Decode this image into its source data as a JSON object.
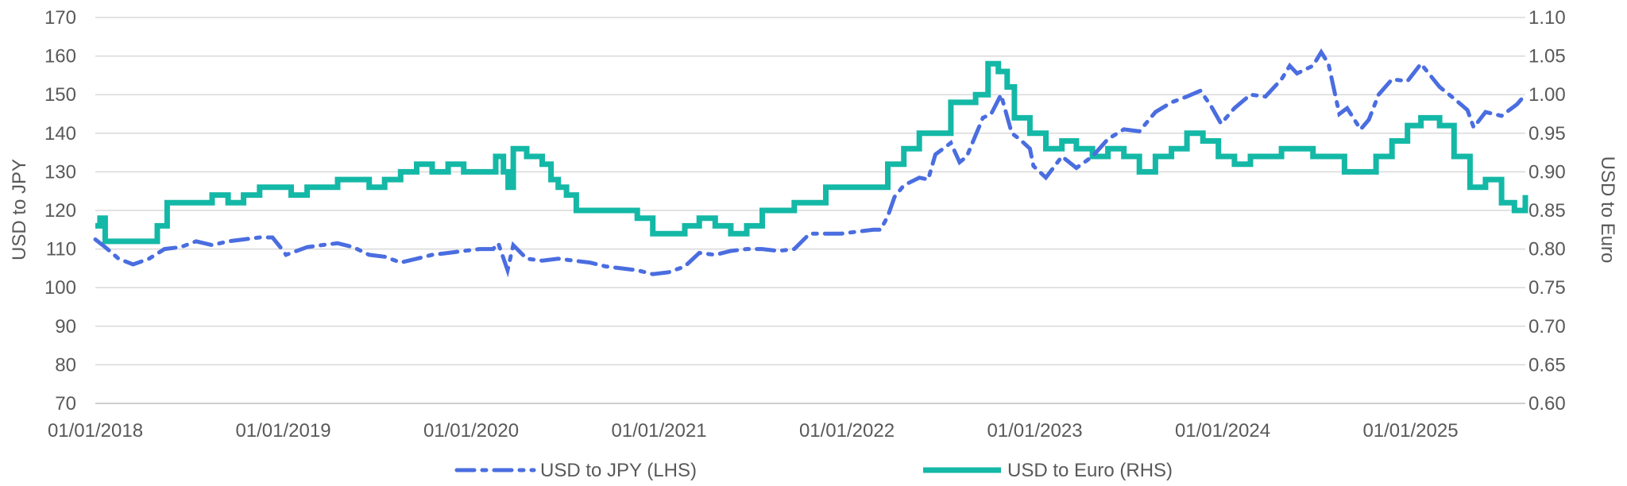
{
  "chart_data": {
    "type": "line",
    "x_tick_labels": [
      "01/01/2018",
      "01/01/2019",
      "01/01/2020",
      "01/01/2021",
      "01/01/2022",
      "01/01/2023",
      "01/01/2024",
      "01/01/2025"
    ],
    "x_start": "2018-01-01",
    "x_end": "2025-07-31",
    "left_axis": {
      "label": "USD to JPY",
      "ylim": [
        70,
        170
      ],
      "ticks": [
        "70",
        "80",
        "90",
        "100",
        "110",
        "120",
        "130",
        "140",
        "150",
        "160",
        "170"
      ]
    },
    "right_axis": {
      "label": "USD to Euro",
      "ylim": [
        0.6,
        1.1
      ],
      "ticks": [
        "0.60",
        "0.65",
        "0.70",
        "0.75",
        "0.80",
        "0.85",
        "0.90",
        "0.95",
        "1.00",
        "1.05",
        "1.10"
      ]
    },
    "grid": true,
    "legend_position": "bottom",
    "series": [
      {
        "name": "USD to JPY (LHS)",
        "axis": "left",
        "color": "#4a6de0",
        "style": "dash-dot",
        "points": [
          [
            "2018-01-01",
            112.5
          ],
          [
            "2018-01-20",
            110.5
          ],
          [
            "2018-02-15",
            107.5
          ],
          [
            "2018-03-15",
            106.0
          ],
          [
            "2018-04-15",
            107.5
          ],
          [
            "2018-05-15",
            110.0
          ],
          [
            "2018-06-15",
            110.5
          ],
          [
            "2018-07-15",
            112.0
          ],
          [
            "2018-08-15",
            111.0
          ],
          [
            "2018-09-15",
            112.0
          ],
          [
            "2018-10-15",
            112.5
          ],
          [
            "2018-11-15",
            113.0
          ],
          [
            "2018-12-10",
            113.0
          ],
          [
            "2018-12-25",
            110.5
          ],
          [
            "2019-01-05",
            108.5
          ],
          [
            "2019-02-15",
            110.5
          ],
          [
            "2019-03-15",
            111.0
          ],
          [
            "2019-04-15",
            111.5
          ],
          [
            "2019-05-15",
            110.5
          ],
          [
            "2019-06-15",
            108.5
          ],
          [
            "2019-07-15",
            108.0
          ],
          [
            "2019-08-15",
            106.5
          ],
          [
            "2019-09-15",
            107.5
          ],
          [
            "2019-10-15",
            108.5
          ],
          [
            "2019-11-15",
            109.0
          ],
          [
            "2019-12-15",
            109.5
          ],
          [
            "2020-01-15",
            110.0
          ],
          [
            "2020-02-10",
            110.0
          ],
          [
            "2020-02-20",
            111.5
          ],
          [
            "2020-03-09",
            104.5
          ],
          [
            "2020-03-20",
            111.0
          ],
          [
            "2020-04-15",
            107.5
          ],
          [
            "2020-05-15",
            107.0
          ],
          [
            "2020-06-15",
            107.5
          ],
          [
            "2020-07-15",
            107.0
          ],
          [
            "2020-08-15",
            106.5
          ],
          [
            "2020-09-15",
            105.5
          ],
          [
            "2020-10-15",
            105.0
          ],
          [
            "2020-11-15",
            104.5
          ],
          [
            "2020-12-15",
            103.5
          ],
          [
            "2021-01-15",
            104.0
          ],
          [
            "2021-02-15",
            105.5
          ],
          [
            "2021-03-15",
            109.0
          ],
          [
            "2021-04-15",
            108.5
          ],
          [
            "2021-05-15",
            109.5
          ],
          [
            "2021-06-15",
            110.0
          ],
          [
            "2021-07-15",
            110.0
          ],
          [
            "2021-08-15",
            109.5
          ],
          [
            "2021-09-15",
            110.0
          ],
          [
            "2021-10-15",
            114.0
          ],
          [
            "2021-11-15",
            114.0
          ],
          [
            "2021-12-15",
            114.0
          ],
          [
            "2022-01-15",
            114.5
          ],
          [
            "2022-02-15",
            115.0
          ],
          [
            "2022-03-01",
            115.0
          ],
          [
            "2022-03-15",
            118.5
          ],
          [
            "2022-03-28",
            123.5
          ],
          [
            "2022-04-15",
            126.5
          ],
          [
            "2022-05-15",
            128.5
          ],
          [
            "2022-06-01",
            128.0
          ],
          [
            "2022-06-15",
            134.5
          ],
          [
            "2022-07-15",
            137.5
          ],
          [
            "2022-08-01",
            132.5
          ],
          [
            "2022-08-15",
            134.0
          ],
          [
            "2022-09-01",
            139.5
          ],
          [
            "2022-09-15",
            144.0
          ],
          [
            "2022-10-01",
            145.0
          ],
          [
            "2022-10-20",
            150.0
          ],
          [
            "2022-11-10",
            140.0
          ],
          [
            "2022-11-25",
            138.5
          ],
          [
            "2022-12-15",
            136.0
          ],
          [
            "2022-12-22",
            131.5
          ],
          [
            "2023-01-15",
            128.5
          ],
          [
            "2023-02-15",
            134.0
          ],
          [
            "2023-03-15",
            131.0
          ],
          [
            "2023-04-15",
            134.0
          ],
          [
            "2023-05-15",
            138.5
          ],
          [
            "2023-06-15",
            141.0
          ],
          [
            "2023-07-15",
            140.5
          ],
          [
            "2023-08-15",
            145.5
          ],
          [
            "2023-09-15",
            148.0
          ],
          [
            "2023-10-15",
            149.5
          ],
          [
            "2023-11-10",
            151.0
          ],
          [
            "2023-12-01",
            147.0
          ],
          [
            "2023-12-20",
            142.5
          ],
          [
            "2024-01-15",
            146.5
          ],
          [
            "2024-02-15",
            150.0
          ],
          [
            "2024-03-15",
            149.5
          ],
          [
            "2024-04-15",
            154.0
          ],
          [
            "2024-05-01",
            157.5
          ],
          [
            "2024-05-15",
            155.5
          ],
          [
            "2024-06-15",
            157.5
          ],
          [
            "2024-07-01",
            161.0
          ],
          [
            "2024-07-15",
            158.0
          ],
          [
            "2024-08-05",
            145.0
          ],
          [
            "2024-08-20",
            146.5
          ],
          [
            "2024-09-15",
            141.0
          ],
          [
            "2024-10-01",
            143.5
          ],
          [
            "2024-10-20",
            150.0
          ],
          [
            "2024-11-15",
            154.0
          ],
          [
            "2024-12-15",
            153.5
          ],
          [
            "2025-01-10",
            158.0
          ],
          [
            "2025-02-15",
            152.0
          ],
          [
            "2025-03-15",
            149.0
          ],
          [
            "2025-04-10",
            146.0
          ],
          [
            "2025-04-22",
            141.5
          ],
          [
            "2025-05-15",
            145.5
          ],
          [
            "2025-06-15",
            144.5
          ],
          [
            "2025-07-15",
            147.5
          ],
          [
            "2025-07-31",
            150.0
          ]
        ]
      },
      {
        "name": "USD to Euro (RHS)",
        "axis": "right",
        "color": "#14b8a6",
        "style": "solid",
        "points": [
          [
            "2018-01-01",
            0.83
          ],
          [
            "2018-01-10",
            0.84
          ],
          [
            "2018-01-20",
            0.81
          ],
          [
            "2018-02-10",
            0.81
          ],
          [
            "2018-03-15",
            0.81
          ],
          [
            "2018-04-15",
            0.81
          ],
          [
            "2018-05-01",
            0.83
          ],
          [
            "2018-05-20",
            0.86
          ],
          [
            "2018-06-15",
            0.86
          ],
          [
            "2018-07-15",
            0.86
          ],
          [
            "2018-08-15",
            0.87
          ],
          [
            "2018-09-15",
            0.86
          ],
          [
            "2018-10-15",
            0.87
          ],
          [
            "2018-11-15",
            0.88
          ],
          [
            "2018-12-15",
            0.88
          ],
          [
            "2019-01-15",
            0.87
          ],
          [
            "2019-02-15",
            0.88
          ],
          [
            "2019-03-15",
            0.88
          ],
          [
            "2019-04-15",
            0.89
          ],
          [
            "2019-05-15",
            0.89
          ],
          [
            "2019-06-15",
            0.88
          ],
          [
            "2019-07-15",
            0.89
          ],
          [
            "2019-08-15",
            0.9
          ],
          [
            "2019-09-15",
            0.91
          ],
          [
            "2019-10-15",
            0.9
          ],
          [
            "2019-11-15",
            0.91
          ],
          [
            "2019-12-15",
            0.9
          ],
          [
            "2020-01-15",
            0.9
          ],
          [
            "2020-02-15",
            0.92
          ],
          [
            "2020-03-01",
            0.9
          ],
          [
            "2020-03-10",
            0.88
          ],
          [
            "2020-03-20",
            0.93
          ],
          [
            "2020-04-15",
            0.92
          ],
          [
            "2020-05-15",
            0.91
          ],
          [
            "2020-06-01",
            0.89
          ],
          [
            "2020-06-15",
            0.88
          ],
          [
            "2020-07-01",
            0.87
          ],
          [
            "2020-07-20",
            0.85
          ],
          [
            "2020-08-15",
            0.85
          ],
          [
            "2020-09-15",
            0.85
          ],
          [
            "2020-10-15",
            0.85
          ],
          [
            "2020-11-15",
            0.84
          ],
          [
            "2020-12-15",
            0.82
          ],
          [
            "2021-01-15",
            0.82
          ],
          [
            "2021-02-15",
            0.83
          ],
          [
            "2021-03-15",
            0.84
          ],
          [
            "2021-04-15",
            0.83
          ],
          [
            "2021-05-15",
            0.82
          ],
          [
            "2021-06-15",
            0.83
          ],
          [
            "2021-07-15",
            0.85
          ],
          [
            "2021-08-15",
            0.85
          ],
          [
            "2021-09-15",
            0.86
          ],
          [
            "2021-10-15",
            0.86
          ],
          [
            "2021-11-15",
            0.88
          ],
          [
            "2021-12-15",
            0.88
          ],
          [
            "2022-01-15",
            0.88
          ],
          [
            "2022-02-15",
            0.88
          ],
          [
            "2022-03-15",
            0.91
          ],
          [
            "2022-04-15",
            0.93
          ],
          [
            "2022-05-15",
            0.95
          ],
          [
            "2022-06-15",
            0.95
          ],
          [
            "2022-07-15",
            0.99
          ],
          [
            "2022-08-15",
            0.99
          ],
          [
            "2022-09-01",
            1.0
          ],
          [
            "2022-09-25",
            1.04
          ],
          [
            "2022-10-15",
            1.03
          ],
          [
            "2022-11-01",
            1.01
          ],
          [
            "2022-11-15",
            0.97
          ],
          [
            "2022-12-15",
            0.95
          ],
          [
            "2023-01-15",
            0.93
          ],
          [
            "2023-02-15",
            0.94
          ],
          [
            "2023-03-15",
            0.93
          ],
          [
            "2023-04-15",
            0.92
          ],
          [
            "2023-05-15",
            0.93
          ],
          [
            "2023-06-15",
            0.92
          ],
          [
            "2023-07-15",
            0.9
          ],
          [
            "2023-08-15",
            0.92
          ],
          [
            "2023-09-15",
            0.93
          ],
          [
            "2023-10-15",
            0.95
          ],
          [
            "2023-11-15",
            0.94
          ],
          [
            "2023-12-15",
            0.92
          ],
          [
            "2024-01-15",
            0.91
          ],
          [
            "2024-02-15",
            0.92
          ],
          [
            "2024-03-15",
            0.92
          ],
          [
            "2024-04-15",
            0.93
          ],
          [
            "2024-05-15",
            0.93
          ],
          [
            "2024-06-15",
            0.92
          ],
          [
            "2024-07-15",
            0.92
          ],
          [
            "2024-08-15",
            0.9
          ],
          [
            "2024-09-15",
            0.9
          ],
          [
            "2024-10-15",
            0.92
          ],
          [
            "2024-11-15",
            0.94
          ],
          [
            "2024-12-15",
            0.96
          ],
          [
            "2025-01-10",
            0.97
          ],
          [
            "2025-02-15",
            0.96
          ],
          [
            "2025-03-15",
            0.92
          ],
          [
            "2025-04-15",
            0.88
          ],
          [
            "2025-05-15",
            0.89
          ],
          [
            "2025-06-15",
            0.86
          ],
          [
            "2025-07-10",
            0.85
          ],
          [
            "2025-07-31",
            0.87
          ]
        ]
      }
    ]
  }
}
